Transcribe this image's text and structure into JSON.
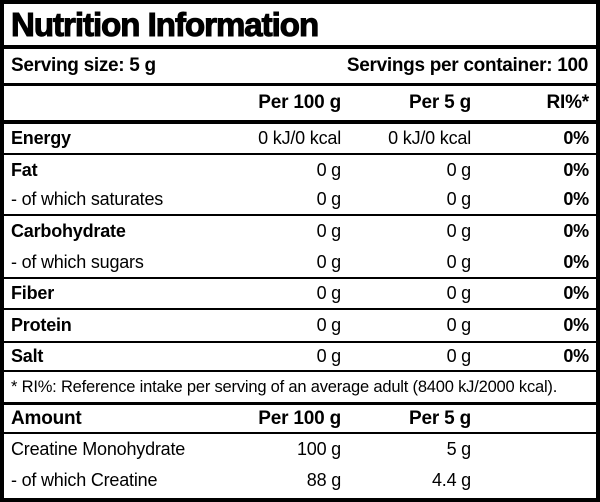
{
  "title": "Nutrition Information",
  "serving": {
    "size": "Serving size: 5 g",
    "per_container": "Servings per container: 100"
  },
  "main_table": {
    "headers": {
      "per100": "Per 100 g",
      "per5": "Per 5 g",
      "ri": "RI%*"
    },
    "rows": [
      {
        "label": "Energy",
        "per100": "0 kJ/0 kcal",
        "per5": "0 kJ/0 kcal",
        "ri": "0%"
      },
      {
        "label": "Fat",
        "per100": "0 g",
        "per5": "0 g",
        "ri": "0%"
      },
      {
        "label": "- of which saturates",
        "per100": "0 g",
        "per5": "0 g",
        "ri": "0%"
      },
      {
        "label": "Carbohydrate",
        "per100": "0 g",
        "per5": "0 g",
        "ri": "0%"
      },
      {
        "label": "- of which sugars",
        "per100": "0 g",
        "per5": "0 g",
        "ri": "0%"
      },
      {
        "label": "Fiber",
        "per100": "0 g",
        "per5": "0 g",
        "ri": "0%"
      },
      {
        "label": "Protein",
        "per100": "0 g",
        "per5": "0 g",
        "ri": "0%"
      },
      {
        "label": "Salt",
        "per100": "0 g",
        "per5": "0 g",
        "ri": "0%"
      }
    ]
  },
  "footnote": "* RI%: Reference intake per serving of an average adult (8400 kJ/2000 kcal).",
  "amount_table": {
    "headers": {
      "label": "Amount",
      "per100": "Per 100 g",
      "per5": "Per 5 g"
    },
    "rows": [
      {
        "label": "Creatine Monohydrate",
        "per100": "100 g",
        "per5": "5 g"
      },
      {
        "label": "- of which Creatine",
        "per100": "88 g",
        "per5": "4.4 g"
      }
    ]
  },
  "colors": {
    "border": "#000000",
    "background": "#ffffff",
    "text": "#000000"
  }
}
